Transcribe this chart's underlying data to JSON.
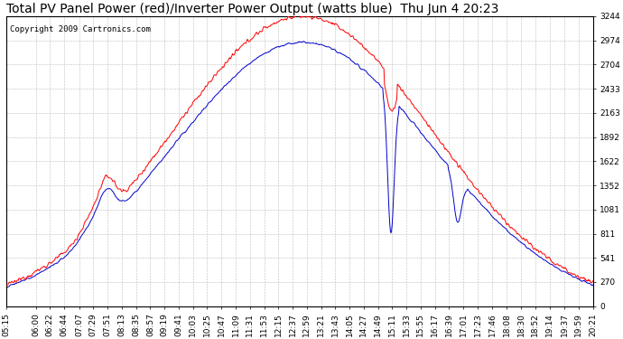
{
  "title": "Total PV Panel Power (red)/Inverter Power Output (watts blue)  Thu Jun 4 20:23",
  "copyright": "Copyright 2009 Cartronics.com",
  "yticks": [
    0.0,
    270.4,
    540.7,
    811.1,
    1081.4,
    1351.8,
    1622.2,
    1892.5,
    2162.9,
    2433.3,
    2703.6,
    2974.0,
    3244.3
  ],
  "ymax": 3244.3,
  "xtick_labels": [
    "05:15",
    "06:00",
    "06:22",
    "06:44",
    "07:07",
    "07:29",
    "07:51",
    "08:13",
    "08:35",
    "08:57",
    "09:19",
    "09:41",
    "10:03",
    "10:25",
    "10:47",
    "11:09",
    "11:31",
    "11:53",
    "12:15",
    "12:37",
    "12:59",
    "13:21",
    "13:43",
    "14:05",
    "14:27",
    "14:49",
    "15:11",
    "15:33",
    "15:55",
    "16:17",
    "16:39",
    "17:01",
    "17:23",
    "17:46",
    "18:08",
    "18:30",
    "18:52",
    "19:14",
    "19:37",
    "19:59",
    "20:21"
  ],
  "background_color": "#ffffff",
  "grid_color": "#bbbbbb",
  "red_color": "#ff0000",
  "blue_color": "#0000cc",
  "title_fontsize": 10,
  "copyright_fontsize": 6.5,
  "tick_fontsize": 6.5,
  "figwidth": 6.9,
  "figheight": 3.75,
  "dpi": 100
}
